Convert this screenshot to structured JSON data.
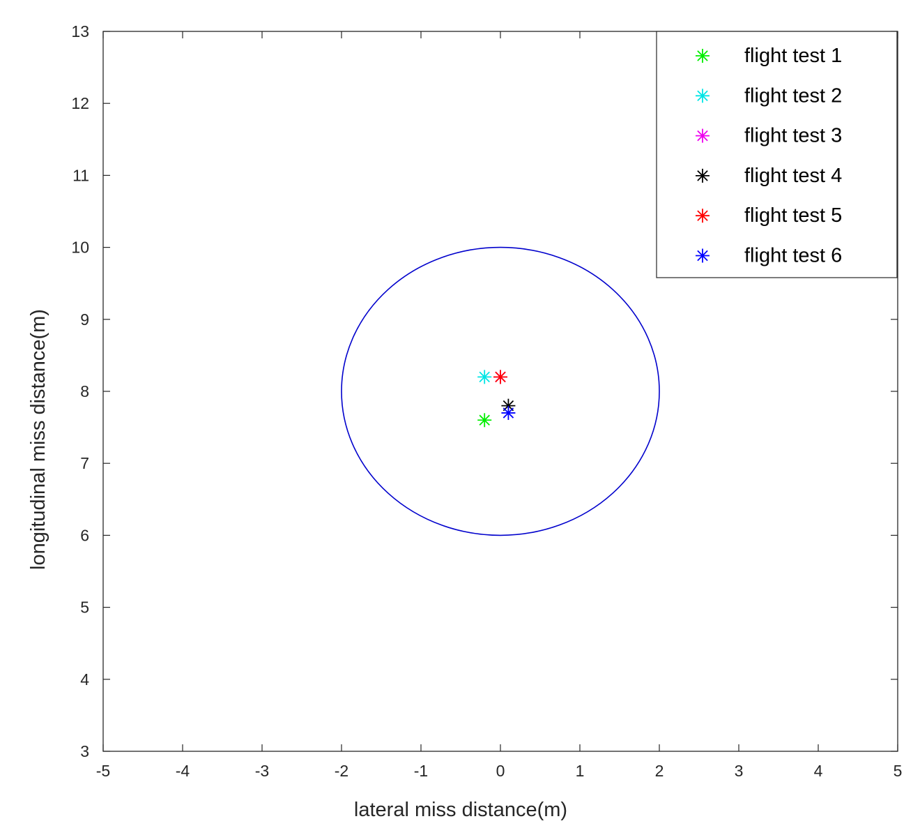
{
  "chart_data": {
    "type": "scatter",
    "xlabel": "lateral miss distance(m)",
    "ylabel": "longitudinal miss distance(m)",
    "xlim": [
      -5,
      5
    ],
    "ylim": [
      3,
      13
    ],
    "xticks": [
      "-5",
      "-4",
      "-3",
      "-2",
      "-1",
      "0",
      "1",
      "2",
      "3",
      "4",
      "5"
    ],
    "yticks": [
      "3",
      "4",
      "5",
      "6",
      "7",
      "8",
      "9",
      "10",
      "11",
      "12",
      "13"
    ],
    "grid": false,
    "legend_position": "top-right",
    "marker": "asterisk",
    "circle": {
      "center": [
        0,
        8
      ],
      "radius_x": 2,
      "radius_y": 2,
      "color": "#0000cc"
    },
    "series": [
      {
        "name": "flight test 1",
        "color": "#00ee00",
        "points": [
          [
            -0.2,
            7.6
          ]
        ]
      },
      {
        "name": "flight test 2",
        "color": "#00e5e5",
        "points": [
          [
            -0.2,
            8.2
          ]
        ]
      },
      {
        "name": "flight test 3",
        "color": "#ee00ee",
        "points": [
          [
            0.0,
            8.2
          ]
        ]
      },
      {
        "name": "flight test 4",
        "color": "#000000",
        "points": [
          [
            0.1,
            7.8
          ]
        ]
      },
      {
        "name": "flight test 5",
        "color": "#ff0000",
        "points": [
          [
            0.0,
            8.2
          ]
        ]
      },
      {
        "name": "flight test 6",
        "color": "#0000ff",
        "points": [
          [
            0.1,
            7.7
          ]
        ]
      }
    ]
  }
}
